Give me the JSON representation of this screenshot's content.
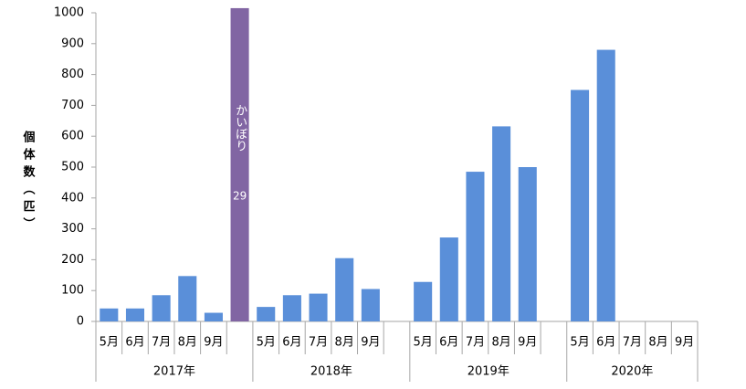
{
  "chart_data": {
    "type": "bar",
    "y_label": "個体数（匹）",
    "ylim": [
      0,
      1000
    ],
    "yticks": [
      0,
      100,
      200,
      300,
      400,
      500,
      600,
      700,
      800,
      900,
      1000
    ],
    "color": "#5a8fd9",
    "groups": [
      {
        "name": "2017年",
        "months": [
          "5月",
          "6月",
          "7月",
          "8月",
          "9月"
        ],
        "values": [
          42,
          42,
          85,
          147,
          28
        ]
      },
      {
        "name": "2018年",
        "months": [
          "5月",
          "6月",
          "7月",
          "8月",
          "9月"
        ],
        "values": [
          47,
          85,
          90,
          205,
          105
        ]
      },
      {
        "name": "2019年",
        "months": [
          "5月",
          "6月",
          "7月",
          "8月",
          "9月"
        ],
        "values": [
          128,
          272,
          485,
          632,
          500
        ]
      },
      {
        "name": "2020年",
        "months": [
          "5月",
          "6月",
          "7月",
          "8月",
          "9月"
        ],
        "values": [
          750,
          880,
          null,
          null,
          null
        ]
      }
    ],
    "special": {
      "label_lines": [
        "かいぼり",
        "29"
      ],
      "value": 1015,
      "color": "#8165a3"
    }
  }
}
